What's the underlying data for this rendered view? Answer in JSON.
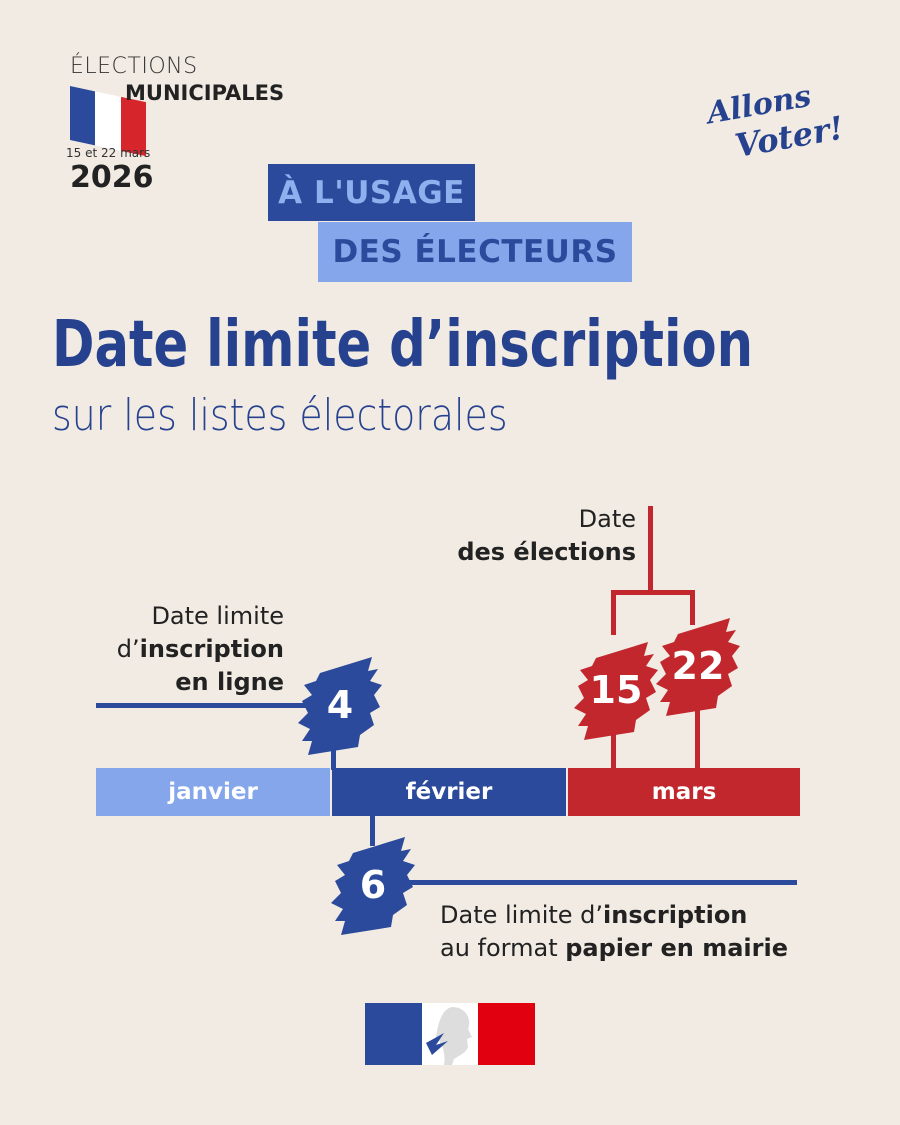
{
  "header": {
    "elections": "ÉLECTIONS",
    "municipales": "MUNICIPALES",
    "election_dates": "15 et 22 mars",
    "year": "2026",
    "slogan_logo": "Allons Voter!"
  },
  "badges": {
    "line1": "À L'USAGE",
    "line2": "DES ÉLECTEURS"
  },
  "title": "Date limite d’inscription",
  "subtitle": "sur les listes électorales",
  "timeline": {
    "months": [
      {
        "label": "janvier",
        "color": "#86a6ec"
      },
      {
        "label": "février",
        "color": "#2b4a9b"
      },
      {
        "label": "mars",
        "color": "#c1272d"
      }
    ],
    "online": {
      "day": "4",
      "line1": "Date limite",
      "line2_prefix": "d’",
      "line2_bold": "inscription",
      "line3_bold": "en ligne"
    },
    "paper": {
      "day": "6",
      "line1_prefix": "Date limite d’",
      "line1_bold": "inscription",
      "line2_prefix": "au format ",
      "line2_bold": "papier en mairie"
    },
    "elections": {
      "days": [
        "15",
        "22"
      ],
      "line1": "Date",
      "line2_bold": "des élections"
    }
  },
  "colors": {
    "background": "#f1ebe3",
    "blue": "#2b4a9b",
    "light_blue": "#86a6ec",
    "red": "#c1272d"
  },
  "footer": {
    "logo": "Marianne - République Française"
  }
}
